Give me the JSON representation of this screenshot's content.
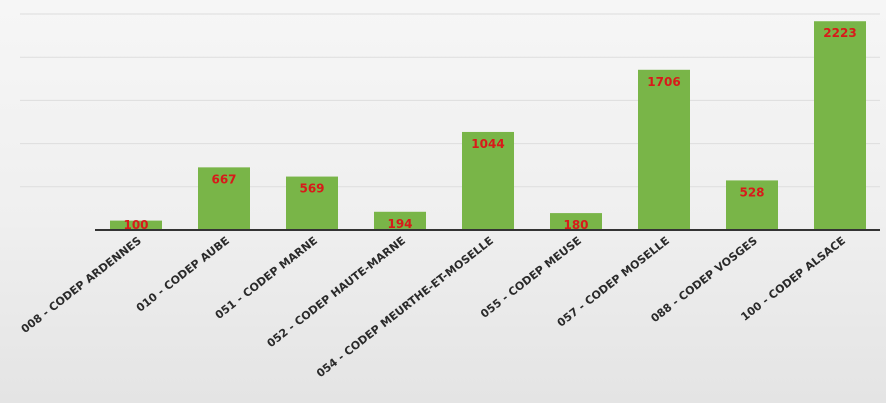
{
  "chart_data": {
    "type": "bar",
    "categories": [
      "008 - CODEP ARDENNES",
      "010 - CODEP AUBE",
      "051 - CODEP MARNE",
      "052 - CODEP HAUTE-MARNE",
      "054 - CODEP MEURTHE-ET-MOSELLE",
      "055 - CODEP MEUSE",
      "057 - CODEP MOSELLE",
      "088 - CODEP VOSGES",
      "100 - CODEP ALSACE"
    ],
    "values": [
      100,
      667,
      569,
      194,
      1044,
      180,
      1706,
      528,
      2223
    ],
    "data_labels": [
      "100",
      "667",
      "569",
      "194",
      "1044",
      "180",
      "1706",
      "528",
      "2223"
    ],
    "ylim": [
      0,
      2300
    ],
    "grid": true,
    "legend": "none",
    "colors": {
      "bar": "#79b548",
      "label": "#d81a1a"
    }
  }
}
